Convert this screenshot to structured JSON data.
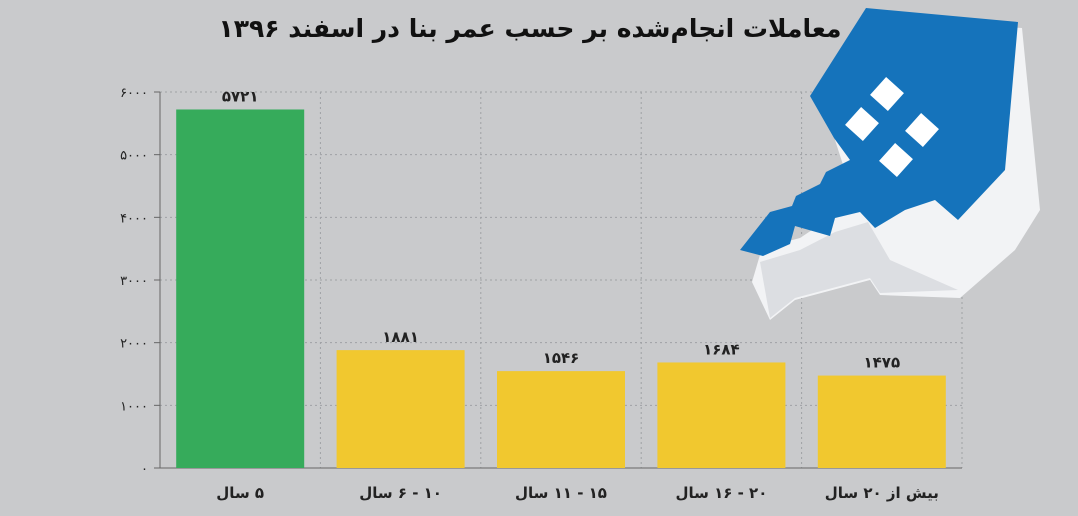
{
  "title": "معاملات انجام‌شده بر حسب عمر بنا در اسفند ۱۳۹۶",
  "chart_data": {
    "type": "bar",
    "title": "معاملات انجام‌شده بر حسب عمر بنا در اسفند ۱۳۹۶",
    "categories": [
      "۵ سال",
      "۱۰ - ۶ سال",
      "۱۵ - ۱۱ سال",
      "۲۰ - ۱۶ سال",
      "بیش از ۲۰ سال"
    ],
    "values": [
      5721,
      1881,
      1546,
      1684,
      1475
    ],
    "value_labels": [
      "۵۷۲۱",
      "۱۸۸۱",
      "۱۵۴۶",
      "۱۶۸۴",
      "۱۴۷۵"
    ],
    "yticks": [
      0,
      1000,
      2000,
      3000,
      4000,
      5000,
      6000
    ],
    "ytick_labels": [
      "۰",
      "۱۰۰۰",
      "۲۰۰۰",
      "۳۰۰۰",
      "۴۰۰۰",
      "۵۰۰۰",
      "۶۰۰۰"
    ],
    "ylim": [
      0,
      6000
    ],
    "xlabel": "",
    "ylabel": "",
    "grid": true,
    "colors": [
      "#36ab5b",
      "#f1c82f",
      "#f1c82f",
      "#f1c82f",
      "#f1c82f"
    ]
  },
  "logo": {
    "icon": "house-key-icon",
    "color": "#1573bb"
  }
}
